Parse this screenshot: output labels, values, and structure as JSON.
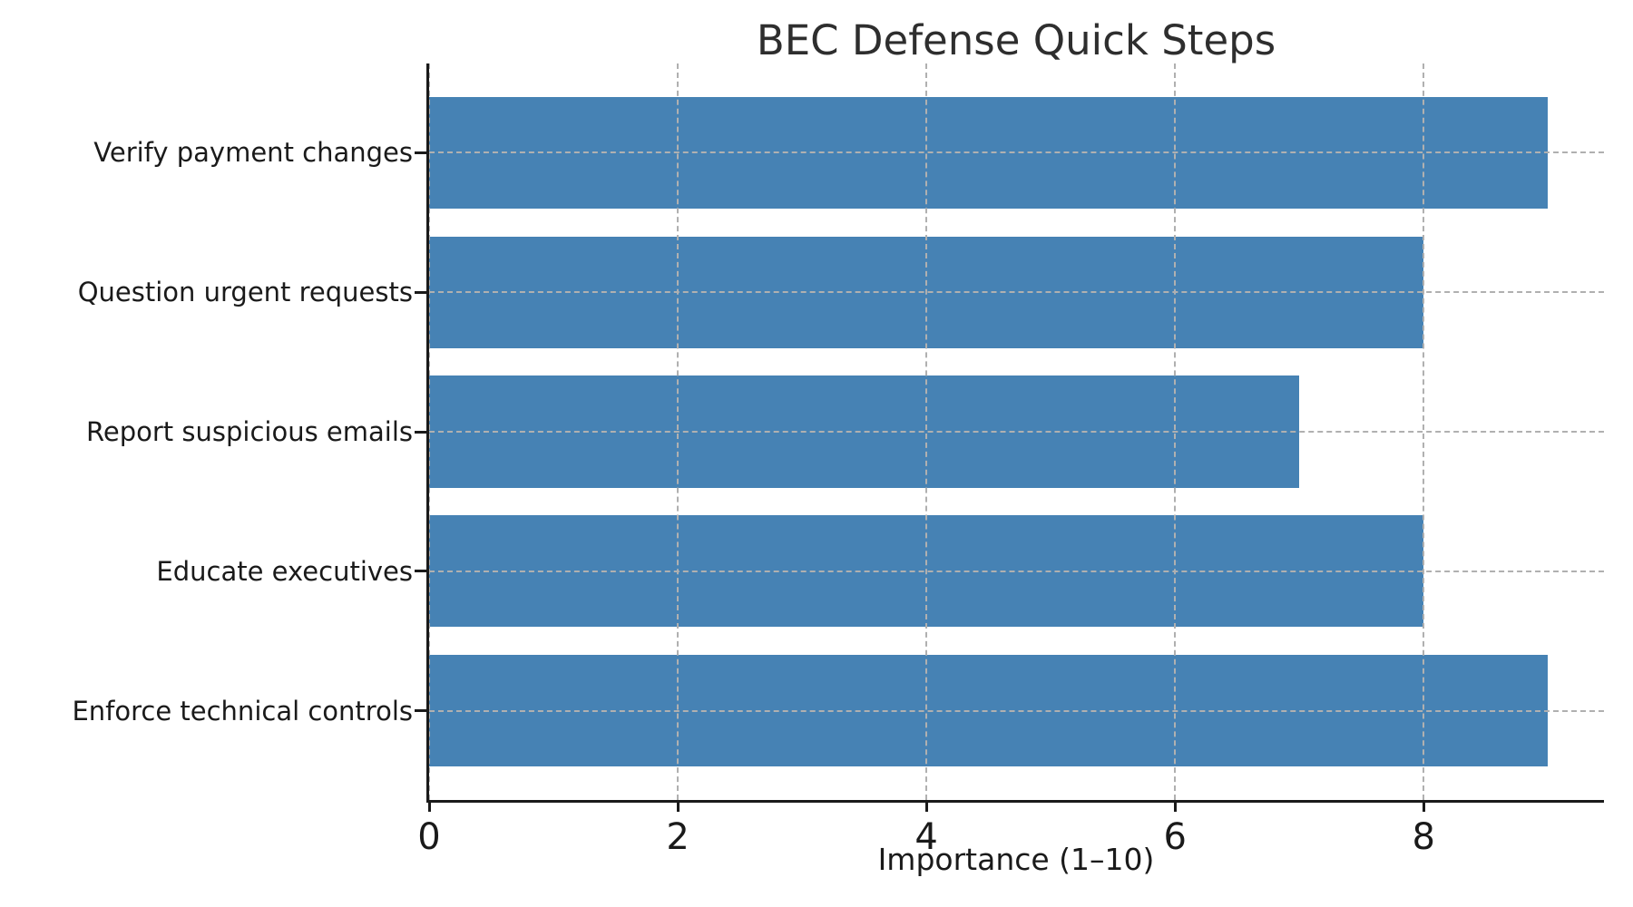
{
  "figure": {
    "background": "#ffffff",
    "text_color": "#1a1a1a",
    "title_color": "#2e2e2e"
  },
  "chart_data": {
    "type": "bar",
    "orientation": "horizontal",
    "title": "BEC Defense Quick Steps",
    "xlabel": "Importance (1–10)",
    "ylabel": "",
    "categories": [
      "Verify payment changes",
      "Question urgent requests",
      "Report suspicious emails",
      "Educate executives",
      "Enforce technical controls"
    ],
    "values": [
      9,
      8,
      7,
      8,
      9
    ],
    "xticks": [
      0,
      2,
      4,
      6,
      8
    ],
    "xlim": [
      0,
      9.45
    ],
    "bar_color": "#4682B4",
    "bar_rel_height": 0.8,
    "grid": true,
    "grid_color": "#b0b0b0",
    "grid_style": "dashed",
    "legend_position": "none"
  }
}
